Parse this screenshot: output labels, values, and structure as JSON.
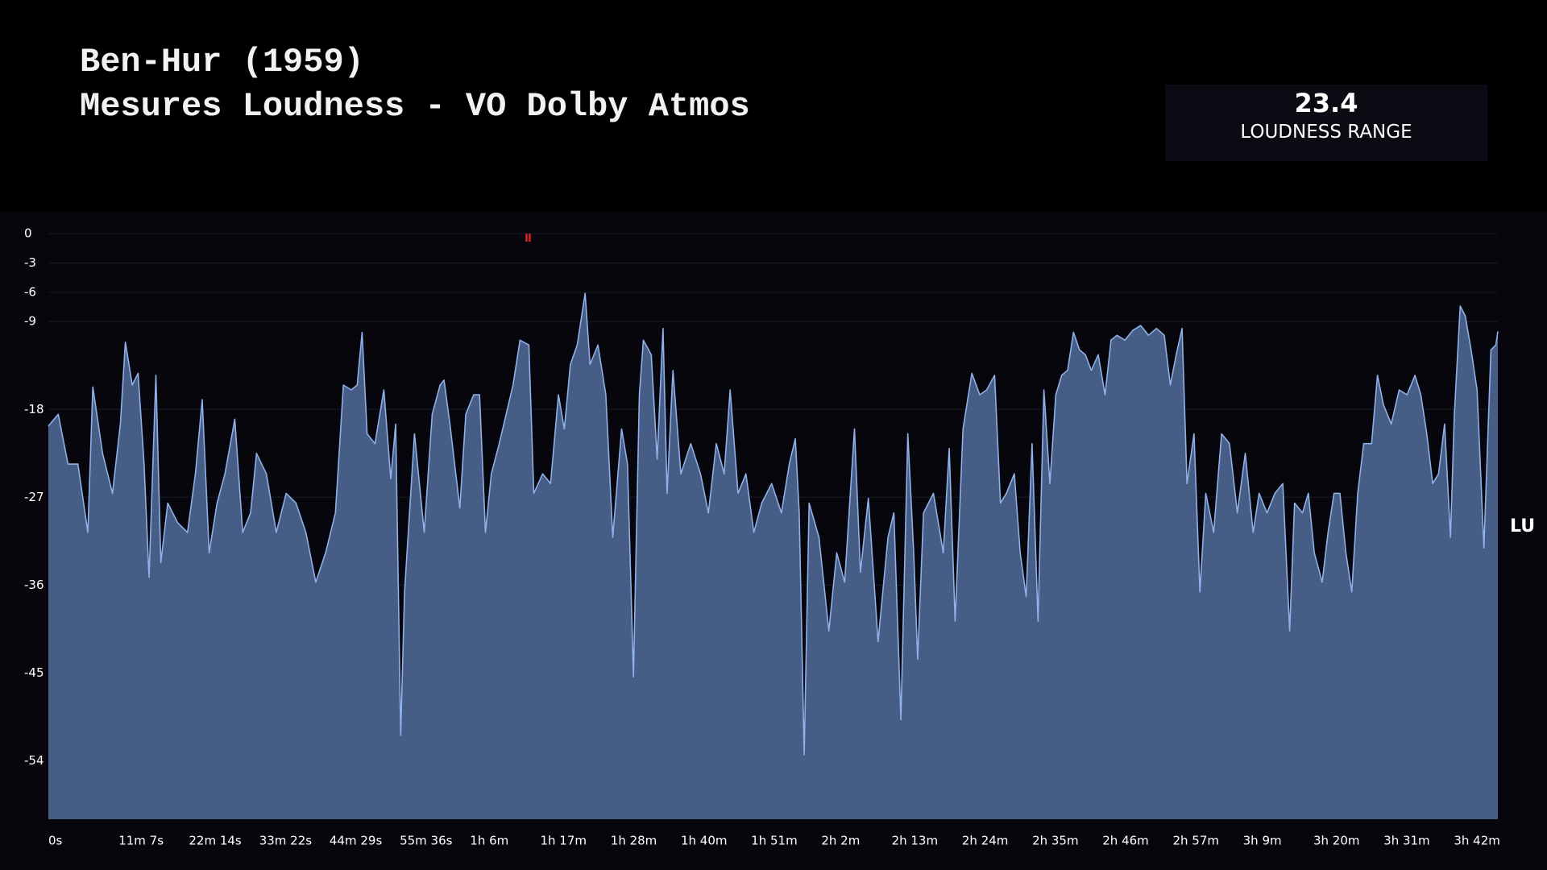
{
  "header": {
    "title_line1": "Ben-Hur (1959)",
    "title_line2": "Mesures Loudness - VO Dolby Atmos"
  },
  "stat": {
    "value": "23.4",
    "label": "LOUDNESS RANGE"
  },
  "chart_data": {
    "type": "area",
    "y_unit_label": "LU",
    "xlim": [
      0,
      13762
    ],
    "ylim": [
      -60,
      2
    ],
    "xticks": [
      {
        "value": 0,
        "label": "0s"
      },
      {
        "value": 667,
        "label": "11m 7s"
      },
      {
        "value": 1334,
        "label": "22m 14s"
      },
      {
        "value": 2002,
        "label": "33m 22s"
      },
      {
        "value": 2669,
        "label": "44m 29s"
      },
      {
        "value": 3336,
        "label": "55m 36s"
      },
      {
        "value": 4003,
        "label": "1h 6m"
      },
      {
        "value": 4670,
        "label": "1h 17m"
      },
      {
        "value": 5338,
        "label": "1h 28m"
      },
      {
        "value": 6005,
        "label": "1h 40m"
      },
      {
        "value": 6672,
        "label": "1h 51m"
      },
      {
        "value": 7339,
        "label": "2h 2m"
      },
      {
        "value": 8006,
        "label": "2h 13m"
      },
      {
        "value": 8674,
        "label": "2h 24m"
      },
      {
        "value": 9341,
        "label": "2h 35m"
      },
      {
        "value": 10008,
        "label": "2h 46m"
      },
      {
        "value": 10675,
        "label": "2h 57m"
      },
      {
        "value": 11342,
        "label": "3h 9m"
      },
      {
        "value": 12010,
        "label": "3h 20m"
      },
      {
        "value": 12677,
        "label": "3h 31m"
      },
      {
        "value": 13344,
        "label": "3h 42m"
      }
    ],
    "yticks": [
      0,
      -3,
      -6,
      -9,
      -18,
      -27,
      -36,
      -45,
      -54
    ],
    "zero_tick_color": "#f5c451",
    "grid": true,
    "x": [
      0,
      94,
      187,
      281,
      375,
      422,
      515,
      609,
      684,
      731,
      796,
      852,
      909,
      956,
      1021,
      1068,
      1134,
      1227,
      1321,
      1396,
      1461,
      1527,
      1602,
      1677,
      1770,
      1845,
      1920,
      1977,
      2070,
      2164,
      2258,
      2351,
      2445,
      2539,
      2632,
      2726,
      2801,
      2876,
      2932,
      2979,
      3026,
      3101,
      3185,
      3251,
      3298,
      3345,
      3382,
      3476,
      3569,
      3644,
      3719,
      3757,
      3813,
      3907,
      3963,
      4038,
      4094,
      4150,
      4206,
      4281,
      4347,
      4412,
      4478,
      4562,
      4609,
      4693,
      4768,
      4843,
      4899,
      4956,
      5021,
      5096,
      5143,
      5218,
      5293,
      5359,
      5443,
      5499,
      5555,
      5611,
      5649,
      5724,
      5780,
      5836,
      5874,
      5930,
      6005,
      6099,
      6192,
      6267,
      6342,
      6417,
      6473,
      6548,
      6623,
      6698,
      6773,
      6867,
      6960,
      7035,
      7092,
      7129,
      7176,
      7223,
      7316,
      7410,
      7485,
      7560,
      7654,
      7710,
      7785,
      7878,
      7972,
      8028,
      8094,
      8160,
      8216,
      8253,
      8309,
      8403,
      8497,
      8553,
      8609,
      8684,
      8768,
      8843,
      8909,
      8984,
      9040,
      9096,
      9171,
      9227,
      9284,
      9340,
      9396,
      9452,
      9509,
      9565,
      9621,
      9677,
      9733,
      9790,
      9846,
      9902,
      9968,
      10033,
      10089,
      10146,
      10221,
      10296,
      10371,
      10446,
      10521,
      10595,
      10652,
      10708,
      10764,
      10811,
      10877,
      10933,
      10989,
      11064,
      11139,
      11214,
      11289,
      11364,
      11439,
      11495,
      11570,
      11645,
      11720,
      11785,
      11832,
      11907,
      11963,
      12019,
      12094,
      12150,
      12207,
      12263,
      12319,
      12375,
      12432,
      12488,
      12563,
      12619,
      12675,
      12750,
      12825,
      12900,
      12975,
      13031,
      13087,
      13143,
      13199,
      13256,
      13312,
      13349,
      13405,
      13452,
      13508,
      13565,
      13630,
      13696,
      13743,
      13762
    ],
    "series": [
      {
        "color": "#8fb0e8",
        "fill": "#465d86",
        "values": [
          -19.7,
          -18.5,
          -23.6,
          -23.6,
          -30.6,
          -15.7,
          -22.5,
          -26.6,
          -19.5,
          -11.1,
          -15.5,
          -14.3,
          -23.6,
          -35.2,
          -14.5,
          -33.7,
          -27.6,
          -29.6,
          -30.6,
          -24.6,
          -17,
          -32.7,
          -27.6,
          -24.6,
          -19,
          -30.6,
          -28.6,
          -22.5,
          -24.6,
          -30.6,
          -26.6,
          -27.6,
          -30.6,
          -35.7,
          -32.7,
          -28.6,
          -15.5,
          -16,
          -15.5,
          -10.1,
          -20.5,
          -21.5,
          -16,
          -25.1,
          -19.5,
          -51.4,
          -36.7,
          -20.5,
          -30.6,
          -18.5,
          -15.5,
          -15,
          -19.5,
          -28.1,
          -18.5,
          -16.5,
          -16.5,
          -30.6,
          -24.6,
          -21.5,
          -18.5,
          -15.5,
          -10.9,
          -11.4,
          -26.6,
          -24.6,
          -25.6,
          -16.5,
          -20,
          -13.4,
          -11.4,
          -6.1,
          -13.4,
          -11.4,
          -16.5,
          -31.1,
          -20,
          -23.6,
          -45.4,
          -16.5,
          -10.9,
          -12.4,
          -23.1,
          -9.7,
          -26.6,
          -14,
          -24.6,
          -21.5,
          -24.6,
          -28.6,
          -21.5,
          -24.6,
          -16,
          -26.6,
          -24.6,
          -30.6,
          -27.6,
          -25.6,
          -28.6,
          -23.6,
          -21,
          -28.6,
          -53.4,
          -27.6,
          -31.1,
          -40.7,
          -32.7,
          -35.7,
          -20,
          -34.7,
          -27.1,
          -41.8,
          -31.1,
          -28.6,
          -49.8,
          -20.5,
          -32.7,
          -43.6,
          -28.6,
          -26.6,
          -32.7,
          -22,
          -39.7,
          -20,
          -14.3,
          -16.5,
          -16,
          -14.5,
          -27.6,
          -26.6,
          -24.6,
          -32.7,
          -37.2,
          -21.5,
          -39.7,
          -16,
          -25.6,
          -16.5,
          -14.5,
          -14,
          -10.1,
          -11.9,
          -12.4,
          -14,
          -12.4,
          -16.5,
          -10.9,
          -10.4,
          -10.9,
          -9.9,
          -9.4,
          -10.4,
          -9.7,
          -10.4,
          -15.5,
          -12.4,
          -9.7,
          -25.6,
          -20.5,
          -36.7,
          -26.6,
          -30.6,
          -20.5,
          -21.5,
          -28.6,
          -22.5,
          -30.6,
          -26.6,
          -28.6,
          -26.6,
          -25.6,
          -40.7,
          -27.6,
          -28.6,
          -26.6,
          -32.7,
          -35.7,
          -30.6,
          -26.6,
          -26.6,
          -32.7,
          -36.7,
          -26.6,
          -21.5,
          -21.5,
          -14.5,
          -17.5,
          -19.5,
          -16,
          -16.5,
          -14.5,
          -16.5,
          -20.5,
          -25.6,
          -24.6,
          -19.5,
          -31.1,
          -18.5,
          -7.4,
          -8.4,
          -11.9,
          -16,
          -32.2,
          -11.9,
          -11.4,
          -10
        ]
      }
    ],
    "peak_markers": {
      "x": [
        4553
      ],
      "values": [
        -0.4
      ],
      "color": "#e02020"
    }
  }
}
